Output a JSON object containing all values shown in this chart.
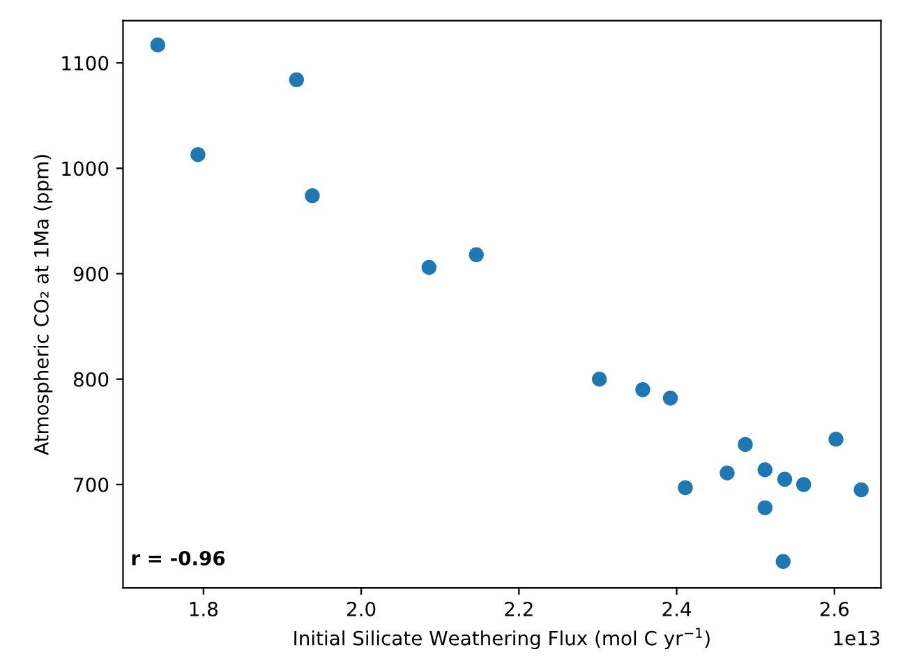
{
  "chart_data": {
    "type": "scatter",
    "xlabel": "Initial Silicate Weathering Flux (mol C yr$^{−1}$)",
    "ylabel": "Atmospheric CO₂ at 1Ma (ppm)",
    "x": [
      1.742,
      1.793,
      1.918,
      1.938,
      2.086,
      2.146,
      2.302,
      2.357,
      2.392,
      2.411,
      2.464,
      2.487,
      2.512,
      2.512,
      2.537,
      2.535,
      2.561,
      2.602,
      2.634
    ],
    "series": [
      {
        "color": "#1f77b4",
        "values": [
          1117,
          1013,
          1084,
          974,
          906,
          918,
          800,
          790,
          782,
          697,
          711,
          738,
          714,
          678,
          705,
          627,
          700,
          743,
          695
        ]
      }
    ],
    "xlim": [
      1.698,
      2.659
    ],
    "ylim": [
      602,
      1140
    ],
    "xticks": [
      1.8,
      {
        "value": 2.0,
        "label": "2.0"
      },
      2.2,
      2.4,
      2.6
    ],
    "yticks": [
      700,
      800,
      900,
      1000,
      1100
    ],
    "marker": "circle",
    "grid": false,
    "legend": false,
    "annotations": [
      "r = -0.96",
      "1e13"
    ]
  }
}
